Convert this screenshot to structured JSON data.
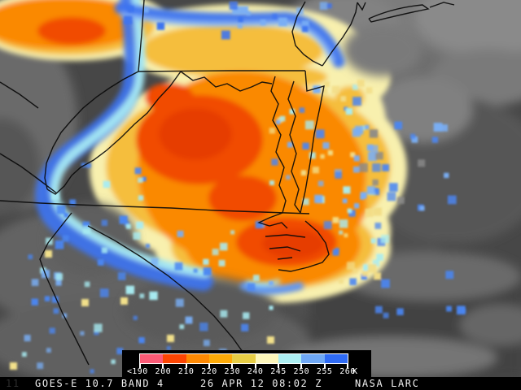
{
  "status_bar": {
    "frame_marker": "11",
    "product": "GOES-E 10.7 BAND 4",
    "timestamp": "26 APR 12 08:02 Z",
    "source": "NASA LARC"
  },
  "legend": {
    "prefix": "<",
    "unit": "K",
    "tick_labels": [
      "190",
      "200",
      "210",
      "220",
      "230",
      "240",
      "245",
      "250",
      "255",
      "260"
    ],
    "segment_colors": [
      "#fb5a76",
      "#fc4503",
      "#fd8802",
      "#fcaa08",
      "#e7cd45",
      "#fdf6bb",
      "#aceef2",
      "#6fa8f5",
      "#2f6bf5"
    ],
    "background_color": "#000000",
    "text_color": "#ffffff"
  },
  "map_palette": {
    "clear_dark": "#424242",
    "cloud_gray": "#7b7b7b",
    "pale_yellow": "#f8f0ae",
    "gold": "#f5be3c",
    "orange": "#fa8902",
    "deep_orange": "#f14b00",
    "cyan": "#a6eaf2",
    "blue": "#3d74f0",
    "boundary_black": "#0a0a0a"
  }
}
